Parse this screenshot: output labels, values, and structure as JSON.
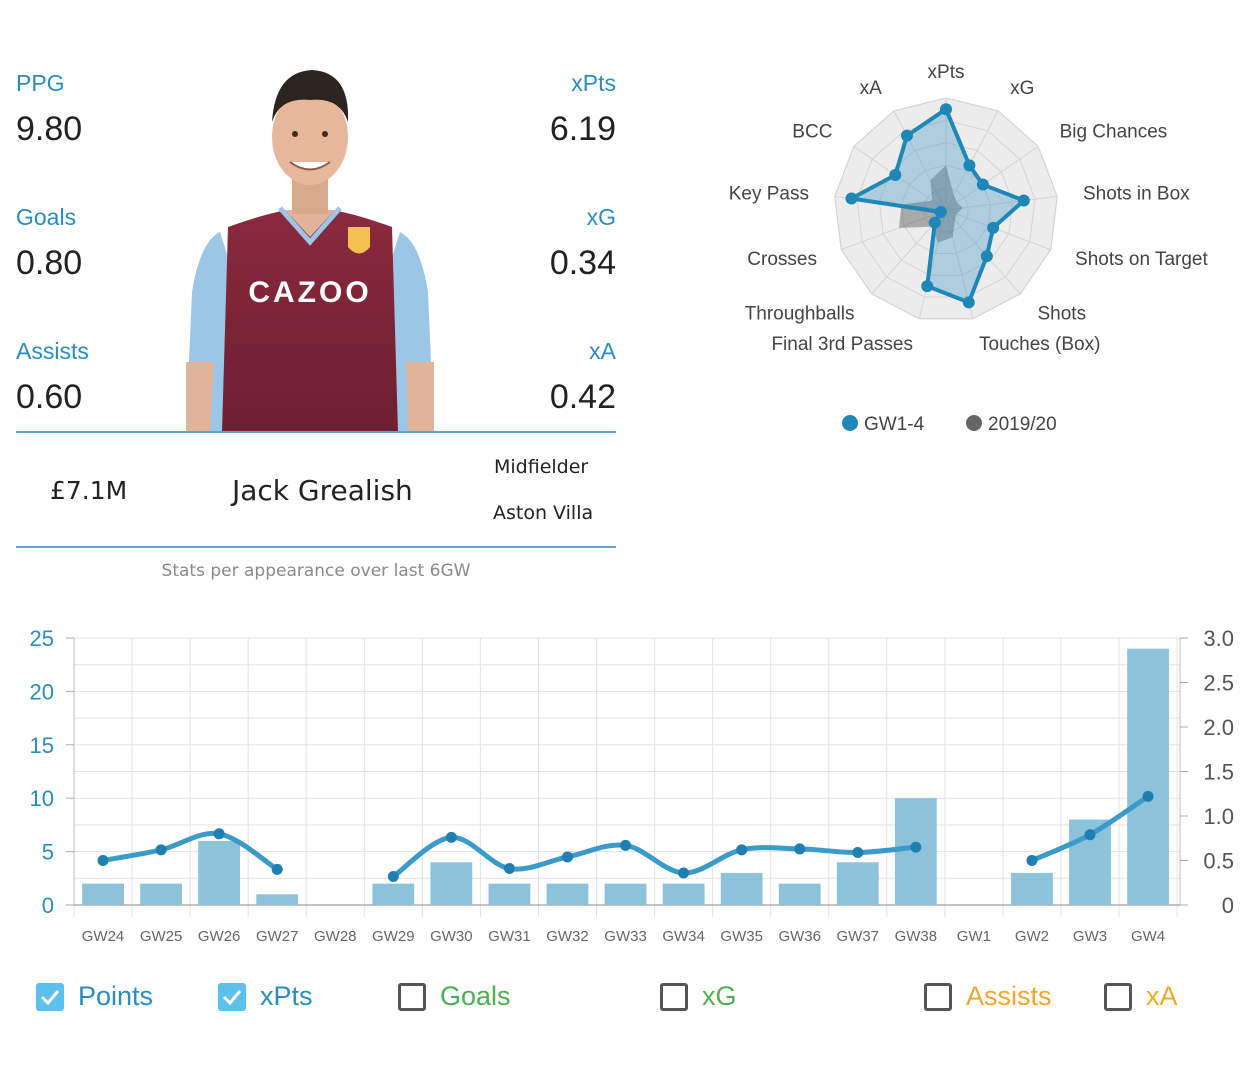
{
  "player": {
    "name": "Jack Grealish",
    "price": "£7.1M",
    "position": "Midfielder",
    "team": "Aston Villa",
    "photo_icon": "player-photo-icon",
    "caption": "Stats per appearance over last 6GW"
  },
  "stats": {
    "ppg_label": "PPG",
    "ppg_value": "9.80",
    "xpts_label": "xPts",
    "xpts_value": "6.19",
    "goals_label": "Goals",
    "goals_value": "0.80",
    "xg_label": "xG",
    "xg_value": "0.34",
    "assists_label": "Assists",
    "assists_value": "0.60",
    "xa_label": "xA",
    "xa_value": "0.42"
  },
  "colors": {
    "accent": "#2b8cbe",
    "bar": "#8cc3db",
    "line": "#3a9ac9",
    "goals": "#4caf50",
    "assists": "#f5a623",
    "radar_current": "#1f86b8",
    "radar_previous": "#666666"
  },
  "chart_data": [
    {
      "type": "radar",
      "axes": [
        "xPts",
        "xG",
        "Big Chances",
        "Shots in Box",
        "Shots on Target",
        "Shots",
        "Touches (Box)",
        "Final 3rd Passes",
        "Throughballs",
        "Crosses",
        "Key Pass",
        "BCC",
        "xA"
      ],
      "series": [
        {
          "name": "GW1-4",
          "values": [
            0.9,
            0.45,
            0.4,
            0.7,
            0.45,
            0.55,
            0.85,
            0.7,
            0.15,
            0.05,
            0.85,
            0.55,
            0.75
          ]
        },
        {
          "name": "2019/20",
          "values": [
            0.4,
            0.15,
            0.12,
            0.15,
            0.1,
            0.12,
            0.25,
            0.3,
            0.2,
            0.45,
            0.4,
            0.15,
            0.3
          ]
        }
      ],
      "legend": "bottom"
    },
    {
      "type": "bar",
      "categories": [
        "GW24",
        "GW25",
        "GW26",
        "GW27",
        "GW28",
        "GW29",
        "GW30",
        "GW31",
        "GW32",
        "GW33",
        "GW34",
        "GW35",
        "GW36",
        "GW37",
        "GW38",
        "GW1",
        "GW2",
        "GW3",
        "GW4"
      ],
      "series": [
        {
          "name": "Points",
          "values": [
            2,
            2,
            6,
            1,
            null,
            2,
            4,
            2,
            2,
            2,
            2,
            3,
            2,
            4,
            10,
            null,
            3,
            8,
            24
          ]
        },
        {
          "name": "xPts",
          "values": [
            0.5,
            0.62,
            0.8,
            0.4,
            null,
            0.32,
            0.76,
            0.41,
            0.54,
            0.67,
            0.36,
            0.62,
            0.63,
            0.59,
            0.65,
            null,
            0.5,
            0.79,
            1.22
          ]
        }
      ],
      "ylim": [
        0,
        25
      ],
      "y_ticks": [
        "0",
        "5",
        "10",
        "15",
        "20",
        "25"
      ],
      "y2lim": [
        0,
        3
      ],
      "y2_ticks": [
        "0",
        "0.5",
        "1.0",
        "1.5",
        "2.0",
        "2.5",
        "3.0"
      ],
      "grid": true
    }
  ],
  "toggles": [
    {
      "label": "Points",
      "checked": true,
      "color": "#2b8cbe"
    },
    {
      "label": "xPts",
      "checked": true,
      "color": "#2b8cbe"
    },
    {
      "label": "Goals",
      "checked": false,
      "color": "#4caf50"
    },
    {
      "label": "xG",
      "checked": false,
      "color": "#4caf50"
    },
    {
      "label": "Assists",
      "checked": false,
      "color": "#f5a623"
    },
    {
      "label": "xA",
      "checked": false,
      "color": "#f5a623"
    }
  ]
}
